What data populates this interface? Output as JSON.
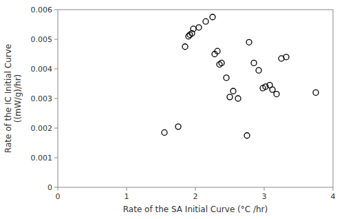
{
  "chart_data": {
    "type": "scatter",
    "x": [
      1.55,
      1.75,
      1.85,
      1.9,
      1.92,
      1.95,
      1.97,
      2.05,
      2.15,
      2.25,
      2.28,
      2.32,
      2.35,
      2.38,
      2.45,
      2.5,
      2.55,
      2.62,
      2.75,
      2.78,
      2.85,
      2.92,
      2.98,
      3.02,
      3.08,
      3.12,
      3.18,
      3.25,
      3.32,
      3.75
    ],
    "values": [
      0.00185,
      0.00205,
      0.00475,
      0.0051,
      0.00515,
      0.0052,
      0.00535,
      0.0054,
      0.0056,
      0.00575,
      0.0045,
      0.0046,
      0.00415,
      0.0042,
      0.0037,
      0.00305,
      0.00325,
      0.003,
      0.00175,
      0.0049,
      0.0042,
      0.00395,
      0.00335,
      0.0034,
      0.00345,
      0.0033,
      0.00315,
      0.00435,
      0.0044,
      0.0032
    ],
    "xlabel": "Rate of the SA Initial Curve (°C /hr)",
    "ylabel": "Rate of the IC Initial Curve\n((mW/g)/hr)",
    "xlim": [
      0,
      4
    ],
    "ylim": [
      0,
      0.006
    ],
    "xticks": [
      0,
      1,
      2,
      3,
      4
    ],
    "yticks": [
      0,
      0.001,
      0.002,
      0.003,
      0.004,
      0.005,
      0.006
    ],
    "color": "#000000",
    "marker": "open-circle",
    "grid": false
  }
}
